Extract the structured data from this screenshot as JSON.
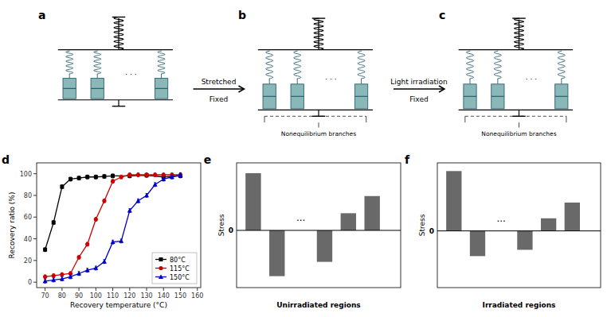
{
  "chart_data": [
    {
      "type": "diagram",
      "title": "a",
      "colors": [
        "#8ab8b8",
        "#2a6070"
      ],
      "annotations": [
        "· · ·",
        "Stretched",
        "Fixed"
      ]
    },
    {
      "type": "diagram",
      "title": "b",
      "colors": [
        "#8ab8b8",
        "#2a6070"
      ],
      "annotations": [
        "· · ·",
        "Nonequilibrium branches",
        "Light irradiation",
        "Fixed"
      ]
    },
    {
      "type": "diagram",
      "title": "c",
      "colors": [
        "#8ab8b8",
        "#2a6070"
      ],
      "annotations": [
        "· · ·",
        "Nonequilibrium branches"
      ]
    },
    {
      "type": "line",
      "title": "d",
      "xlabel": "Recovery temperature (°C)",
      "ylabel": "Recovery ratio (%)",
      "xlim": [
        65,
        162
      ],
      "ylim": [
        -5,
        110
      ],
      "xticks": [
        70,
        80,
        90,
        100,
        110,
        120,
        130,
        140,
        150,
        160
      ],
      "yticks": [
        0,
        20,
        40,
        60,
        80,
        100
      ],
      "grid": false,
      "legend": "lower right",
      "series": [
        {
          "name": "80°C",
          "color": "#000000",
          "marker": "square",
          "x": [
            70,
            75,
            80,
            85,
            90,
            95,
            100,
            105,
            110,
            120,
            130,
            140,
            150
          ],
          "values": [
            30,
            55,
            88,
            95,
            96,
            97,
            97,
            97.5,
            98,
            98,
            98.5,
            97,
            98
          ],
          "errors": [
            1.8,
            1.8,
            1.8,
            1.8,
            1.8,
            1.8,
            1.8,
            1.8,
            1.8,
            1.8,
            1.8,
            1.8,
            1.8
          ]
        },
        {
          "name": "115°C",
          "color": "#cc0000",
          "marker": "circle",
          "x": [
            70,
            75,
            80,
            85,
            90,
            95,
            100,
            105,
            110,
            115,
            120,
            125,
            130,
            135,
            140,
            145,
            150
          ],
          "values": [
            5,
            6,
            7,
            8,
            23,
            35,
            58,
            75,
            93,
            97,
            99,
            99,
            99,
            99,
            99,
            99,
            99
          ],
          "errors": [
            1.8,
            1.8,
            1.8,
            1.8,
            1.8,
            1.8,
            1.8,
            1.8,
            1.8,
            1.8,
            1.8,
            1.8,
            1.8,
            1.8,
            1.8,
            1.8,
            1.8
          ]
        },
        {
          "name": "150°C",
          "color": "#0000cc",
          "marker": "triangle",
          "x": [
            70,
            75,
            80,
            85,
            90,
            95,
            100,
            105,
            110,
            115,
            120,
            125,
            130,
            135,
            140,
            145,
            150
          ],
          "values": [
            1,
            2,
            3,
            5,
            8,
            11,
            13,
            19,
            37,
            38,
            66,
            75,
            80,
            90,
            95,
            97,
            99
          ],
          "errors": [
            1.8,
            1.8,
            1.8,
            1.8,
            1.8,
            1.8,
            1.8,
            1.8,
            1.8,
            1.8,
            1.8,
            1.8,
            1.8,
            1.8,
            1.8,
            1.8,
            1.8
          ]
        }
      ]
    },
    {
      "type": "bar",
      "title": "e",
      "ylabel": "Stress",
      "xlabel": "Unirradiated regions",
      "categories": [
        null,
        null,
        null,
        null,
        null
      ],
      "values": [
        100,
        -80,
        -55,
        30,
        60
      ],
      "color": "#696969",
      "ylim": [
        -100,
        118
      ],
      "yticks": [
        0
      ],
      "tick_labels": "y",
      "grid": false,
      "annotations": [
        "···"
      ]
    },
    {
      "type": "bar",
      "title": "f",
      "ylabel": "Stress",
      "xlabel": "Irradiated regions",
      "categories": [
        null,
        null,
        null,
        null,
        null
      ],
      "values": [
        95,
        -40,
        -30,
        20,
        45
      ],
      "color": "#696969",
      "ylim": [
        -90,
        108
      ],
      "yticks": [
        0
      ],
      "tick_labels": "y",
      "grid": false,
      "annotations": [
        "···"
      ]
    }
  ]
}
